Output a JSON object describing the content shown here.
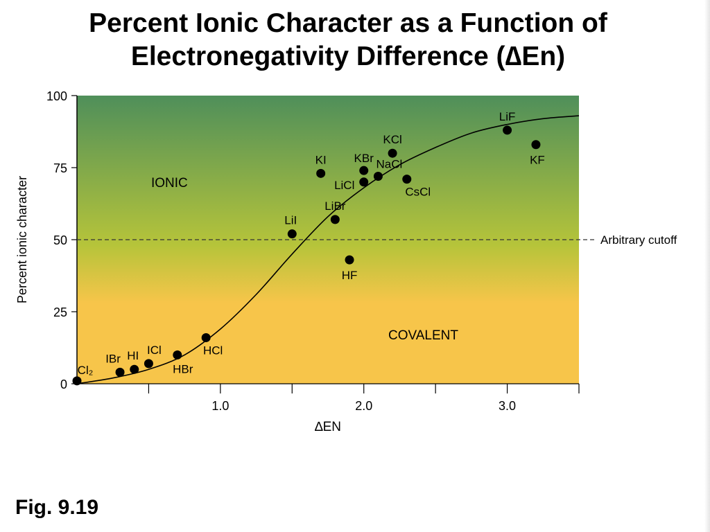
{
  "title": {
    "line1": "Percent Ionic Character as a Function of",
    "line2": "Electronegativity Difference (∆En)"
  },
  "figure_label": "Fig. 9.19",
  "colors": {
    "gradient_top": "#4f8f5a",
    "gradient_mid": "#b6c43a",
    "gradient_bottom": "#f7c54a",
    "marker": "#000000",
    "cutoff_line": "#333333"
  },
  "chart_data": {
    "type": "scatter",
    "title": "",
    "xlabel": "∆EN",
    "ylabel": "Percent ionic character",
    "xlim": [
      0,
      3.5
    ],
    "ylim": [
      0,
      100
    ],
    "x_ticks": [
      0.5,
      1.0,
      1.5,
      2.0,
      2.5,
      3.0,
      3.5
    ],
    "x_tick_labels": [
      {
        "x": 1.0,
        "label": "1.0"
      },
      {
        "x": 2.0,
        "label": "2.0"
      },
      {
        "x": 3.0,
        "label": "3.0"
      }
    ],
    "y_ticks": [
      0,
      25,
      50,
      75,
      100
    ],
    "y_tick_labels": [
      "0",
      "25",
      "50",
      "75",
      "100"
    ],
    "points": [
      {
        "label": "Cl₂",
        "x": 0.0,
        "y": 1
      },
      {
        "label": "IBr",
        "x": 0.3,
        "y": 4
      },
      {
        "label": "HI",
        "x": 0.4,
        "y": 5
      },
      {
        "label": "ICl",
        "x": 0.5,
        "y": 7
      },
      {
        "label": "HBr",
        "x": 0.7,
        "y": 10
      },
      {
        "label": "HCl",
        "x": 0.9,
        "y": 16
      },
      {
        "label": "LiI",
        "x": 1.5,
        "y": 52
      },
      {
        "label": "KI",
        "x": 1.7,
        "y": 73
      },
      {
        "label": "LiBr",
        "x": 1.8,
        "y": 57
      },
      {
        "label": "HF",
        "x": 1.9,
        "y": 43
      },
      {
        "label": "KBr",
        "x": 2.0,
        "y": 74
      },
      {
        "label": "LiCl",
        "x": 2.0,
        "y": 70
      },
      {
        "label": "NaCl",
        "x": 2.1,
        "y": 72
      },
      {
        "label": "KCl",
        "x": 2.2,
        "y": 80
      },
      {
        "label": "CsCl",
        "x": 2.3,
        "y": 71
      },
      {
        "label": "LiF",
        "x": 3.0,
        "y": 88
      },
      {
        "label": "KF",
        "x": 3.2,
        "y": 83
      }
    ],
    "curve": [
      [
        0,
        0
      ],
      [
        0.25,
        2
      ],
      [
        0.5,
        5
      ],
      [
        0.75,
        10
      ],
      [
        1.0,
        19
      ],
      [
        1.25,
        31
      ],
      [
        1.5,
        45
      ],
      [
        1.75,
        58
      ],
      [
        2.0,
        68
      ],
      [
        2.25,
        76
      ],
      [
        2.5,
        82
      ],
      [
        2.75,
        87
      ],
      [
        3.0,
        90
      ],
      [
        3.25,
        92
      ],
      [
        3.5,
        93
      ]
    ],
    "cutoff": {
      "y": 50,
      "label": "Arbitrary cutoff"
    },
    "region_labels": {
      "upper": "IONIC",
      "lower": "COVALENT"
    },
    "grid": false,
    "legend": "none"
  }
}
